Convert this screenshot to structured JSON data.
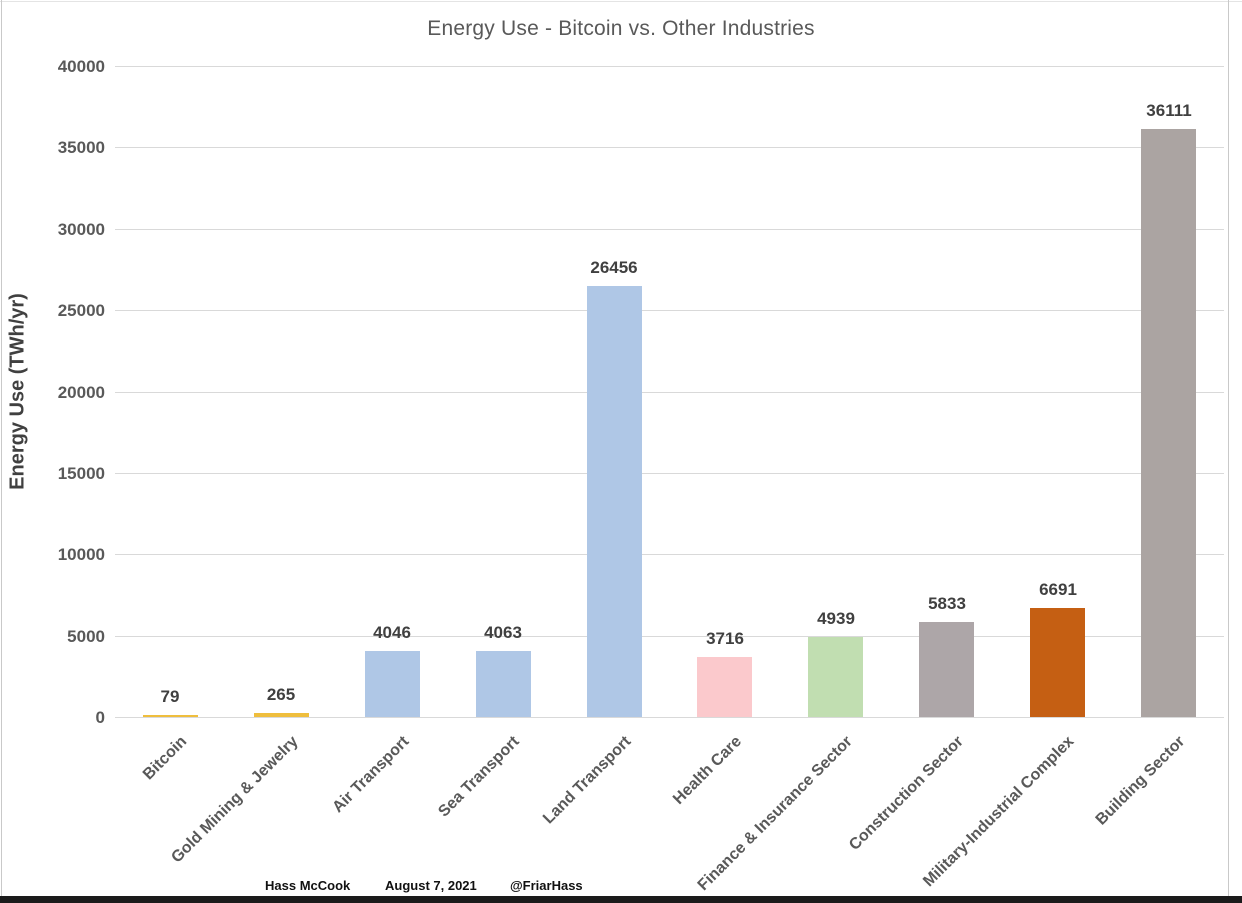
{
  "chart_data": {
    "type": "bar",
    "title": "Energy Use - Bitcoin vs. Other Industries",
    "xlabel": "",
    "ylabel": "Energy Use (TWh/yr)",
    "categories": [
      "Bitcoin",
      "Gold Mining & Jewelry",
      "Air Transport",
      "Sea Transport",
      "Land Transport",
      "Health Care",
      "Finance & Insurance Sector",
      "Construction Sector",
      "Military-Industrial Complex",
      "Building Sector"
    ],
    "values": [
      79,
      265,
      4046,
      4063,
      26456,
      3716,
      4939,
      5833,
      6691,
      36111
    ],
    "value_labels": [
      "79",
      "265",
      "4046",
      "4063",
      "26456",
      "3716",
      "4939",
      "5833",
      "6691",
      "36111"
    ],
    "bar_colors": [
      "#EFBE3D",
      "#EFBE3D",
      "#AFC7E6",
      "#AFC7E6",
      "#AFC7E6",
      "#FBC9CC",
      "#C1DEB1",
      "#ADA6A8",
      "#C55F13",
      "#ABA4A2"
    ],
    "ylim": [
      0,
      40000
    ],
    "yticks": [
      0,
      5000,
      10000,
      15000,
      20000,
      25000,
      30000,
      35000,
      40000
    ],
    "grid": true,
    "legend": false,
    "colors": {
      "gridline": "#d9d9d9",
      "title_text": "#595959",
      "tick_text": "#595959",
      "value_text": "#404040",
      "bottom_strip": "#1b1b1b"
    }
  },
  "footer": {
    "author": "Hass McCook",
    "date": "August 7, 2021",
    "handle": "@FriarHass"
  }
}
